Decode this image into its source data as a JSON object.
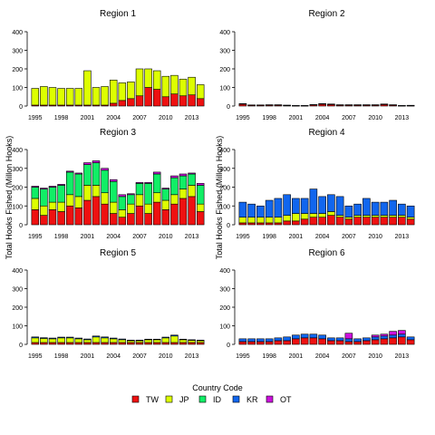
{
  "legend_title": "Country Code",
  "ylabel": "Total Hooks Fished (Millon Hooks)",
  "colors": {
    "TW": "#ee1111",
    "JP": "#ddff00",
    "ID": "#11ee66",
    "KR": "#1166ee",
    "OT": "#cc11dd"
  },
  "chart_data": {
    "type": "bar",
    "stacked": true,
    "ylim": [
      0,
      400
    ],
    "yticks": [
      0,
      100,
      200,
      300,
      400
    ],
    "years": [
      1995,
      1996,
      1997,
      1998,
      1999,
      2000,
      2001,
      2002,
      2003,
      2004,
      2005,
      2006,
      2007,
      2008,
      2009,
      2010,
      2011,
      2012,
      2013,
      2014
    ],
    "xtick_labels": [
      "1995",
      "1998",
      "2001",
      "2004",
      "2007",
      "2010",
      "2013"
    ],
    "series_order": [
      "TW",
      "JP",
      "ID",
      "KR",
      "OT"
    ],
    "legend": [
      "TW",
      "JP",
      "ID",
      "KR",
      "OT"
    ],
    "panels": [
      {
        "title": "Region  1",
        "series": {
          "TW": [
            5,
            5,
            5,
            5,
            5,
            5,
            5,
            5,
            5,
            15,
            30,
            40,
            55,
            100,
            90,
            50,
            65,
            55,
            60,
            40
          ],
          "JP": [
            90,
            100,
            95,
            90,
            90,
            90,
            185,
            95,
            100,
            125,
            95,
            90,
            145,
            100,
            100,
            110,
            100,
            90,
            95,
            75
          ],
          "ID": [
            0,
            0,
            0,
            0,
            0,
            0,
            0,
            0,
            0,
            0,
            0,
            0,
            0,
            0,
            0,
            0,
            0,
            0,
            0,
            0
          ],
          "KR": [
            0,
            0,
            0,
            0,
            0,
            0,
            0,
            0,
            0,
            0,
            0,
            0,
            0,
            0,
            0,
            0,
            0,
            0,
            0,
            0
          ],
          "OT": [
            0,
            0,
            0,
            0,
            0,
            0,
            0,
            0,
            0,
            0,
            0,
            0,
            0,
            0,
            0,
            0,
            0,
            0,
            0,
            0
          ]
        }
      },
      {
        "title": "Region  2",
        "series": {
          "TW": [
            10,
            4,
            4,
            5,
            5,
            3,
            2,
            2,
            6,
            10,
            8,
            5,
            5,
            5,
            5,
            5,
            8,
            5,
            2,
            2
          ],
          "JP": [
            0,
            0,
            0,
            0,
            0,
            0,
            0,
            0,
            0,
            0,
            0,
            0,
            0,
            0,
            0,
            0,
            0,
            0,
            0,
            0
          ],
          "ID": [
            0,
            0,
            0,
            0,
            0,
            0,
            0,
            0,
            0,
            0,
            0,
            0,
            0,
            0,
            0,
            0,
            0,
            0,
            0,
            0
          ],
          "KR": [
            3,
            2,
            2,
            2,
            2,
            2,
            1,
            1,
            2,
            3,
            3,
            2,
            2,
            2,
            2,
            2,
            3,
            2,
            1,
            2
          ],
          "OT": [
            0,
            0,
            0,
            0,
            0,
            0,
            0,
            0,
            0,
            0,
            0,
            0,
            0,
            0,
            0,
            0,
            0,
            0,
            0,
            0
          ]
        }
      },
      {
        "title": "Region  3",
        "series": {
          "TW": [
            80,
            50,
            80,
            70,
            100,
            90,
            130,
            150,
            110,
            60,
            40,
            60,
            100,
            60,
            120,
            80,
            110,
            140,
            150,
            70
          ],
          "JP": [
            60,
            50,
            40,
            50,
            60,
            60,
            80,
            60,
            60,
            60,
            40,
            50,
            60,
            50,
            50,
            50,
            50,
            50,
            60,
            40
          ],
          "ID": [
            60,
            90,
            80,
            90,
            120,
            120,
            110,
            120,
            120,
            110,
            70,
            50,
            60,
            110,
            100,
            60,
            90,
            70,
            60,
            100
          ],
          "KR": [
            0,
            0,
            0,
            0,
            0,
            0,
            0,
            0,
            0,
            0,
            0,
            0,
            0,
            0,
            0,
            0,
            0,
            0,
            0,
            0
          ],
          "OT": [
            5,
            5,
            5,
            5,
            5,
            5,
            10,
            10,
            10,
            10,
            10,
            5,
            5,
            5,
            10,
            5,
            10,
            10,
            5,
            10
          ]
        }
      },
      {
        "title": "Region  4",
        "series": {
          "TW": [
            10,
            10,
            10,
            10,
            10,
            20,
            20,
            30,
            40,
            40,
            50,
            40,
            30,
            40,
            40,
            40,
            40,
            40,
            40,
            30
          ],
          "JP": [
            30,
            30,
            30,
            30,
            30,
            30,
            40,
            30,
            20,
            20,
            20,
            10,
            10,
            10,
            10,
            10,
            10,
            10,
            10,
            10
          ],
          "ID": [
            0,
            0,
            0,
            0,
            0,
            0,
            0,
            0,
            0,
            0,
            0,
            0,
            0,
            0,
            0,
            0,
            0,
            0,
            0,
            0
          ],
          "KR": [
            80,
            70,
            60,
            90,
            100,
            110,
            80,
            80,
            130,
            90,
            90,
            100,
            60,
            60,
            90,
            70,
            70,
            80,
            60,
            60
          ],
          "OT": [
            0,
            0,
            0,
            0,
            0,
            0,
            0,
            0,
            0,
            0,
            0,
            0,
            0,
            0,
            0,
            0,
            0,
            0,
            0,
            0
          ]
        }
      },
      {
        "title": "Region  5",
        "series": {
          "TW": [
            10,
            10,
            10,
            10,
            10,
            10,
            10,
            10,
            10,
            10,
            10,
            10,
            10,
            10,
            10,
            10,
            10,
            10,
            10,
            10
          ],
          "JP": [
            25,
            22,
            20,
            25,
            25,
            20,
            15,
            30,
            25,
            20,
            15,
            10,
            10,
            15,
            15,
            25,
            35,
            15,
            12,
            10
          ],
          "ID": [
            0,
            0,
            0,
            0,
            0,
            0,
            0,
            0,
            0,
            0,
            0,
            0,
            0,
            0,
            0,
            0,
            0,
            0,
            0,
            0
          ],
          "KR": [
            5,
            4,
            4,
            4,
            4,
            4,
            4,
            5,
            5,
            4,
            4,
            3,
            3,
            3,
            3,
            4,
            5,
            3,
            3,
            3
          ],
          "OT": [
            0,
            0,
            0,
            0,
            0,
            0,
            0,
            0,
            0,
            0,
            0,
            0,
            0,
            0,
            0,
            0,
            0,
            0,
            0,
            0
          ]
        }
      },
      {
        "title": "Region  6",
        "series": {
          "TW": [
            15,
            15,
            15,
            15,
            20,
            20,
            30,
            35,
            35,
            30,
            20,
            20,
            15,
            15,
            20,
            25,
            30,
            35,
            40,
            25
          ],
          "JP": [
            0,
            0,
            0,
            0,
            0,
            0,
            0,
            0,
            0,
            0,
            0,
            0,
            0,
            0,
            0,
            0,
            0,
            0,
            0,
            0
          ],
          "ID": [
            0,
            0,
            0,
            0,
            0,
            0,
            0,
            0,
            0,
            0,
            0,
            0,
            0,
            0,
            0,
            0,
            0,
            0,
            0,
            0
          ],
          "KR": [
            15,
            15,
            15,
            15,
            15,
            20,
            20,
            20,
            20,
            20,
            15,
            15,
            15,
            15,
            15,
            15,
            15,
            15,
            15,
            15
          ],
          "OT": [
            0,
            0,
            0,
            0,
            0,
            0,
            0,
            0,
            0,
            0,
            0,
            0,
            30,
            0,
            0,
            10,
            10,
            20,
            20,
            0
          ]
        }
      }
    ]
  }
}
